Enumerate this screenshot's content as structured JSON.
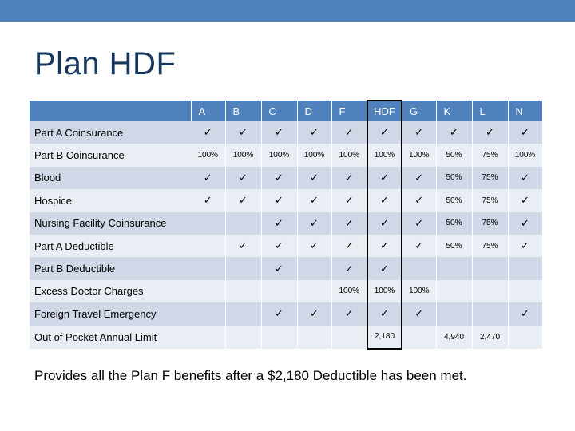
{
  "slide": {
    "title": "Plan HDF",
    "footnote": "Provides all the Plan F benefits after a $2,180 Deductible has been met.",
    "colors": {
      "accent_bar": "#4f81bd",
      "header_fill": "#4f81bd",
      "row_odd": "#d0d8e8",
      "row_even": "#e9edf4",
      "title": "#17375e"
    }
  },
  "table": {
    "columns": [
      "A",
      "B",
      "C",
      "D",
      "F",
      "HDF",
      "G",
      "K",
      "L",
      "N"
    ],
    "rows": [
      {
        "label": "Part A Coinsurance",
        "cells": [
          "✓",
          "✓",
          "✓",
          "✓",
          "✓",
          "✓",
          "✓",
          "✓",
          "✓",
          "✓"
        ]
      },
      {
        "label": "Part B Coinsurance",
        "cells": [
          "100%",
          "100%",
          "100%",
          "100%",
          "100%",
          "100%",
          "100%",
          "50%",
          "75%",
          "100%"
        ]
      },
      {
        "label": "Blood",
        "cells": [
          "✓",
          "✓",
          "✓",
          "✓",
          "✓",
          "✓",
          "✓",
          "50%",
          "75%",
          "✓"
        ]
      },
      {
        "label": "Hospice",
        "cells": [
          "✓",
          "✓",
          "✓",
          "✓",
          "✓",
          "✓",
          "✓",
          "50%",
          "75%",
          "✓"
        ]
      },
      {
        "label": "Nursing Facility Coinsurance",
        "cells": [
          "",
          "",
          "✓",
          "✓",
          "✓",
          "✓",
          "✓",
          "50%",
          "75%",
          "✓"
        ]
      },
      {
        "label": "Part A Deductible",
        "cells": [
          "",
          "✓",
          "✓",
          "✓",
          "✓",
          "✓",
          "✓",
          "50%",
          "75%",
          "✓"
        ]
      },
      {
        "label": "Part B Deductible",
        "cells": [
          "",
          "",
          "✓",
          "",
          "✓",
          "✓",
          "",
          "",
          "",
          ""
        ]
      },
      {
        "label": "Excess Doctor Charges",
        "cells": [
          "",
          "",
          "",
          "",
          "100%",
          "100%",
          "100%",
          "",
          "",
          ""
        ]
      },
      {
        "label": "Foreign Travel Emergency",
        "cells": [
          "",
          "",
          "✓",
          "✓",
          "✓",
          "✓",
          "✓",
          "",
          "",
          "✓"
        ]
      },
      {
        "label": "Out of Pocket Annual Limit",
        "cells": [
          "",
          "",
          "",
          "",
          "",
          "2,180",
          "",
          "4,940",
          "2,470",
          ""
        ]
      }
    ]
  }
}
